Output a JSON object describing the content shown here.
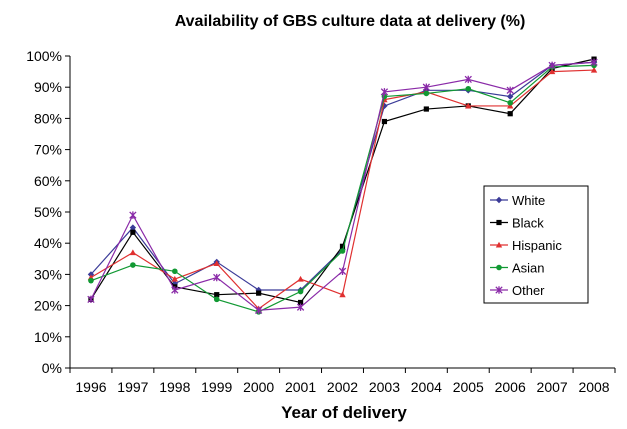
{
  "chart_data": {
    "type": "line",
    "title": "Availability of GBS culture data at delivery (%)",
    "xlabel": "Year of delivery",
    "ylabel": "",
    "categories": [
      "1996",
      "1997",
      "1998",
      "1999",
      "2000",
      "2001",
      "2002",
      "2003",
      "2004",
      "2005",
      "2006",
      "2007",
      "2008"
    ],
    "yticks": [
      "0%",
      "10%",
      "20%",
      "30%",
      "40%",
      "50%",
      "60%",
      "70%",
      "80%",
      "90%",
      "100%"
    ],
    "ylim": [
      0,
      100
    ],
    "grid": false,
    "legend_position": "right",
    "series": [
      {
        "name": "White",
        "color": "#3b3b98",
        "marker": "diamond",
        "values": [
          30,
          45,
          27,
          34,
          25,
          25,
          38,
          84,
          89,
          89,
          87,
          97,
          98
        ]
      },
      {
        "name": "Black",
        "color": "#000000",
        "marker": "square",
        "values": [
          22,
          43.5,
          26,
          23.5,
          24,
          21,
          39,
          79,
          83,
          84,
          81.5,
          96,
          99
        ]
      },
      {
        "name": "Hispanic",
        "color": "#e03030",
        "marker": "triangle",
        "values": [
          29,
          37,
          28.5,
          33.5,
          19,
          28.5,
          23.5,
          86,
          88.5,
          84,
          84,
          95,
          95.5
        ]
      },
      {
        "name": "Asian",
        "color": "#119933",
        "marker": "circle",
        "values": [
          28,
          33,
          31,
          22,
          18,
          24.5,
          37.5,
          87,
          88,
          89.5,
          85,
          96.5,
          97
        ]
      },
      {
        "name": "Other",
        "color": "#8a2aa8",
        "marker": "cross",
        "values": [
          22,
          49,
          25,
          29,
          18.5,
          19.5,
          31,
          88.5,
          90,
          92.5,
          89,
          97,
          98
        ]
      }
    ]
  }
}
